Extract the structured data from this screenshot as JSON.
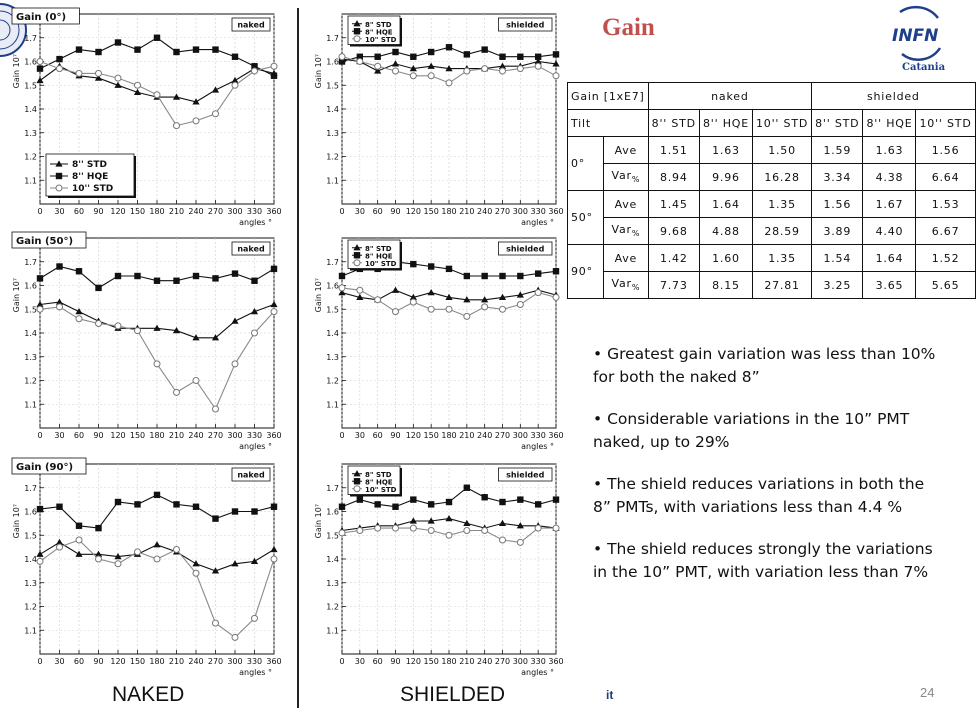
{
  "slide": {
    "title": "Gain",
    "logo_text": "INFN",
    "logo_subtitle": "Catania",
    "left_logo_text": "",
    "column_labels": {
      "naked": "NAKED",
      "shielded": "SHIELDED"
    },
    "footer_text": "it",
    "page_number": "24"
  },
  "colors": {
    "title": "#c0504d",
    "infn_blue": "#1f3f8c",
    "text": "#111111",
    "grid": "#c8c8c8"
  },
  "table": {
    "header_corner": "Gain [1xE7]",
    "group_naked": "naked",
    "group_shielded": "shielded",
    "tilt_label": "Tilt",
    "columns": [
      "8'' STD",
      "8'' HQE",
      "10'' STD",
      "8'' STD",
      "8'' HQE",
      "10'' STD"
    ],
    "blocks": [
      {
        "tilt": "0°",
        "ave_label": "Ave",
        "var_label": "Var%",
        "ave": [
          "1.51",
          "1.63",
          "1.50",
          "1.59",
          "1.63",
          "1.56"
        ],
        "var": [
          "8.94",
          "9.96",
          "16.28",
          "3.34",
          "4.38",
          "6.64"
        ]
      },
      {
        "tilt": "50°",
        "ave_label": "Ave",
        "var_label": "Var%",
        "ave": [
          "1.45",
          "1.64",
          "1.35",
          "1.56",
          "1.67",
          "1.53"
        ],
        "var": [
          "9.68",
          "4.88",
          "28.59",
          "3.89",
          "4.40",
          "6.67"
        ]
      },
      {
        "tilt": "90°",
        "ave_label": "Ave",
        "var_label": "Var%",
        "ave": [
          "1.42",
          "1.60",
          "1.35",
          "1.54",
          "1.64",
          "1.52"
        ],
        "var": [
          "7.73",
          "8.15",
          "27.81",
          "3.25",
          "3.65",
          "5.65"
        ]
      }
    ]
  },
  "bullets": [
    "• Greatest gain variation was less than 10% for both the naked 8”",
    "• Considerable variations in the 10” PMT naked, up to 29%",
    "• The shield reduces variations in both the 8” PMTs, with variations less than 4.4 %",
    "• The shield reduces strongly the variations in the 10” PMT, with variation less than 7%"
  ],
  "chart_data": [
    {
      "type": "line",
      "title": "Gain (0°)",
      "tag": "naked",
      "xlabel": "angles °",
      "ylabel": "Gain 10⁷",
      "xlim": [
        0,
        360
      ],
      "ylim": [
        1.0,
        1.8
      ],
      "x_ticks": [
        0,
        30,
        60,
        90,
        120,
        150,
        180,
        210,
        240,
        270,
        300,
        330,
        360
      ],
      "y_ticks": [
        1.1,
        1.2,
        1.3,
        1.4,
        1.5,
        1.6,
        1.7
      ],
      "legend_position": "bottom-left",
      "x": [
        0,
        30,
        60,
        90,
        120,
        150,
        180,
        210,
        240,
        270,
        300,
        330,
        360
      ],
      "series": [
        {
          "name": "8'' STD",
          "marker": "triangle",
          "values": [
            1.52,
            1.58,
            1.54,
            1.53,
            1.5,
            1.47,
            1.45,
            1.45,
            1.43,
            1.48,
            1.52,
            1.57,
            1.55
          ]
        },
        {
          "name": "8'' HQE",
          "marker": "square",
          "values": [
            1.57,
            1.61,
            1.65,
            1.64,
            1.68,
            1.65,
            1.7,
            1.64,
            1.65,
            1.65,
            1.62,
            1.58,
            1.54
          ]
        },
        {
          "name": "10'' STD",
          "marker": "circle",
          "values": [
            1.6,
            1.57,
            1.55,
            1.55,
            1.53,
            1.5,
            1.46,
            1.33,
            1.35,
            1.38,
            1.5,
            1.56,
            1.58
          ]
        }
      ]
    },
    {
      "type": "line",
      "title": "",
      "tag": "shielded",
      "xlabel": "angles °",
      "ylabel": "Gain 10⁷",
      "xlim": [
        0,
        360
      ],
      "ylim": [
        1.0,
        1.8
      ],
      "x_ticks": [
        0,
        30,
        60,
        90,
        120,
        150,
        180,
        210,
        240,
        270,
        300,
        330,
        360
      ],
      "y_ticks": [
        1.1,
        1.2,
        1.3,
        1.4,
        1.5,
        1.6,
        1.7
      ],
      "legend_position": "top-left",
      "x": [
        0,
        30,
        60,
        90,
        120,
        150,
        180,
        210,
        240,
        270,
        300,
        330,
        360
      ],
      "series": [
        {
          "name": "8\" STD",
          "marker": "triangle",
          "values": [
            1.61,
            1.6,
            1.56,
            1.59,
            1.57,
            1.58,
            1.57,
            1.57,
            1.57,
            1.58,
            1.58,
            1.6,
            1.59
          ]
        },
        {
          "name": "8\" HQE",
          "marker": "square",
          "values": [
            1.6,
            1.62,
            1.62,
            1.64,
            1.62,
            1.64,
            1.66,
            1.63,
            1.65,
            1.62,
            1.62,
            1.62,
            1.63
          ]
        },
        {
          "name": "10\" STD",
          "marker": "circle",
          "values": [
            1.62,
            1.6,
            1.58,
            1.56,
            1.54,
            1.54,
            1.51,
            1.56,
            1.57,
            1.56,
            1.57,
            1.58,
            1.54
          ]
        }
      ]
    },
    {
      "type": "line",
      "title": "Gain (50°)",
      "tag": "naked",
      "xlabel": "angles °",
      "ylabel": "Gain 10⁷",
      "xlim": [
        0,
        360
      ],
      "ylim": [
        1.0,
        1.8
      ],
      "x_ticks": [
        0,
        30,
        60,
        90,
        120,
        150,
        180,
        210,
        240,
        270,
        300,
        330,
        360
      ],
      "y_ticks": [
        1.1,
        1.2,
        1.3,
        1.4,
        1.5,
        1.6,
        1.7
      ],
      "legend_position": "none",
      "x": [
        0,
        30,
        60,
        90,
        120,
        150,
        180,
        210,
        240,
        270,
        300,
        330,
        360
      ],
      "series": [
        {
          "name": "8'' STD",
          "marker": "triangle",
          "values": [
            1.52,
            1.53,
            1.49,
            1.45,
            1.42,
            1.42,
            1.42,
            1.41,
            1.38,
            1.38,
            1.45,
            1.49,
            1.52
          ]
        },
        {
          "name": "8'' HQE",
          "marker": "square",
          "values": [
            1.63,
            1.68,
            1.66,
            1.59,
            1.64,
            1.64,
            1.62,
            1.62,
            1.64,
            1.63,
            1.65,
            1.62,
            1.67
          ]
        },
        {
          "name": "10'' STD",
          "marker": "circle",
          "values": [
            1.5,
            1.51,
            1.46,
            1.44,
            1.43,
            1.41,
            1.27,
            1.15,
            1.2,
            1.08,
            1.27,
            1.4,
            1.49
          ]
        }
      ]
    },
    {
      "type": "line",
      "title": "",
      "tag": "shielded",
      "xlabel": "angles °",
      "ylabel": "Gain 10⁷",
      "xlim": [
        0,
        360
      ],
      "ylim": [
        1.0,
        1.8
      ],
      "x_ticks": [
        0,
        30,
        60,
        90,
        120,
        150,
        180,
        210,
        240,
        270,
        300,
        330,
        360
      ],
      "y_ticks": [
        1.1,
        1.2,
        1.3,
        1.4,
        1.5,
        1.6,
        1.7
      ],
      "legend_position": "top-left",
      "x": [
        0,
        30,
        60,
        90,
        120,
        150,
        180,
        210,
        240,
        270,
        300,
        330,
        360
      ],
      "series": [
        {
          "name": "8\" STD",
          "marker": "triangle",
          "values": [
            1.57,
            1.55,
            1.54,
            1.58,
            1.55,
            1.57,
            1.55,
            1.54,
            1.54,
            1.55,
            1.56,
            1.58,
            1.56
          ]
        },
        {
          "name": "8\" HQE",
          "marker": "square",
          "values": [
            1.64,
            1.67,
            1.67,
            1.7,
            1.69,
            1.68,
            1.67,
            1.64,
            1.64,
            1.64,
            1.64,
            1.65,
            1.66
          ]
        },
        {
          "name": "10\" STD",
          "marker": "circle",
          "values": [
            1.59,
            1.58,
            1.54,
            1.49,
            1.53,
            1.5,
            1.5,
            1.47,
            1.51,
            1.5,
            1.52,
            1.57,
            1.55
          ]
        }
      ]
    },
    {
      "type": "line",
      "title": "Gain (90°)",
      "tag": "naked",
      "xlabel": "angles °",
      "ylabel": "Gain 10⁷",
      "xlim": [
        0,
        360
      ],
      "ylim": [
        1.0,
        1.8
      ],
      "x_ticks": [
        0,
        30,
        60,
        90,
        120,
        150,
        180,
        210,
        240,
        270,
        300,
        330,
        360
      ],
      "y_ticks": [
        1.1,
        1.2,
        1.3,
        1.4,
        1.5,
        1.6,
        1.7
      ],
      "legend_position": "none",
      "x": [
        0,
        30,
        60,
        90,
        120,
        150,
        180,
        210,
        240,
        270,
        300,
        330,
        360
      ],
      "series": [
        {
          "name": "8'' STD",
          "marker": "triangle",
          "values": [
            1.42,
            1.47,
            1.42,
            1.42,
            1.41,
            1.42,
            1.46,
            1.43,
            1.38,
            1.35,
            1.38,
            1.39,
            1.44
          ]
        },
        {
          "name": "8'' HQE",
          "marker": "square",
          "values": [
            1.61,
            1.62,
            1.54,
            1.53,
            1.64,
            1.63,
            1.67,
            1.63,
            1.62,
            1.57,
            1.6,
            1.6,
            1.62
          ]
        },
        {
          "name": "10'' STD",
          "marker": "circle",
          "values": [
            1.39,
            1.45,
            1.48,
            1.4,
            1.38,
            1.43,
            1.4,
            1.44,
            1.34,
            1.13,
            1.07,
            1.15,
            1.4
          ]
        }
      ]
    },
    {
      "type": "line",
      "title": "",
      "tag": "shielded",
      "xlabel": "angles °",
      "ylabel": "Gain 10⁷",
      "xlim": [
        0,
        360
      ],
      "ylim": [
        1.0,
        1.8
      ],
      "x_ticks": [
        0,
        30,
        60,
        90,
        120,
        150,
        180,
        210,
        240,
        270,
        300,
        330,
        360
      ],
      "y_ticks": [
        1.1,
        1.2,
        1.3,
        1.4,
        1.5,
        1.6,
        1.7
      ],
      "legend_position": "top-left",
      "x": [
        0,
        30,
        60,
        90,
        120,
        150,
        180,
        210,
        240,
        270,
        300,
        330,
        360
      ],
      "series": [
        {
          "name": "8\" STD",
          "marker": "triangle",
          "values": [
            1.52,
            1.53,
            1.54,
            1.54,
            1.56,
            1.56,
            1.57,
            1.55,
            1.53,
            1.55,
            1.54,
            1.54,
            1.53
          ]
        },
        {
          "name": "8\" HQE",
          "marker": "square",
          "values": [
            1.62,
            1.65,
            1.63,
            1.62,
            1.65,
            1.63,
            1.64,
            1.7,
            1.66,
            1.64,
            1.65,
            1.63,
            1.65
          ]
        },
        {
          "name": "10\" STD",
          "marker": "circle",
          "values": [
            1.51,
            1.52,
            1.53,
            1.53,
            1.53,
            1.52,
            1.5,
            1.52,
            1.52,
            1.48,
            1.47,
            1.53,
            1.53
          ]
        }
      ]
    }
  ]
}
